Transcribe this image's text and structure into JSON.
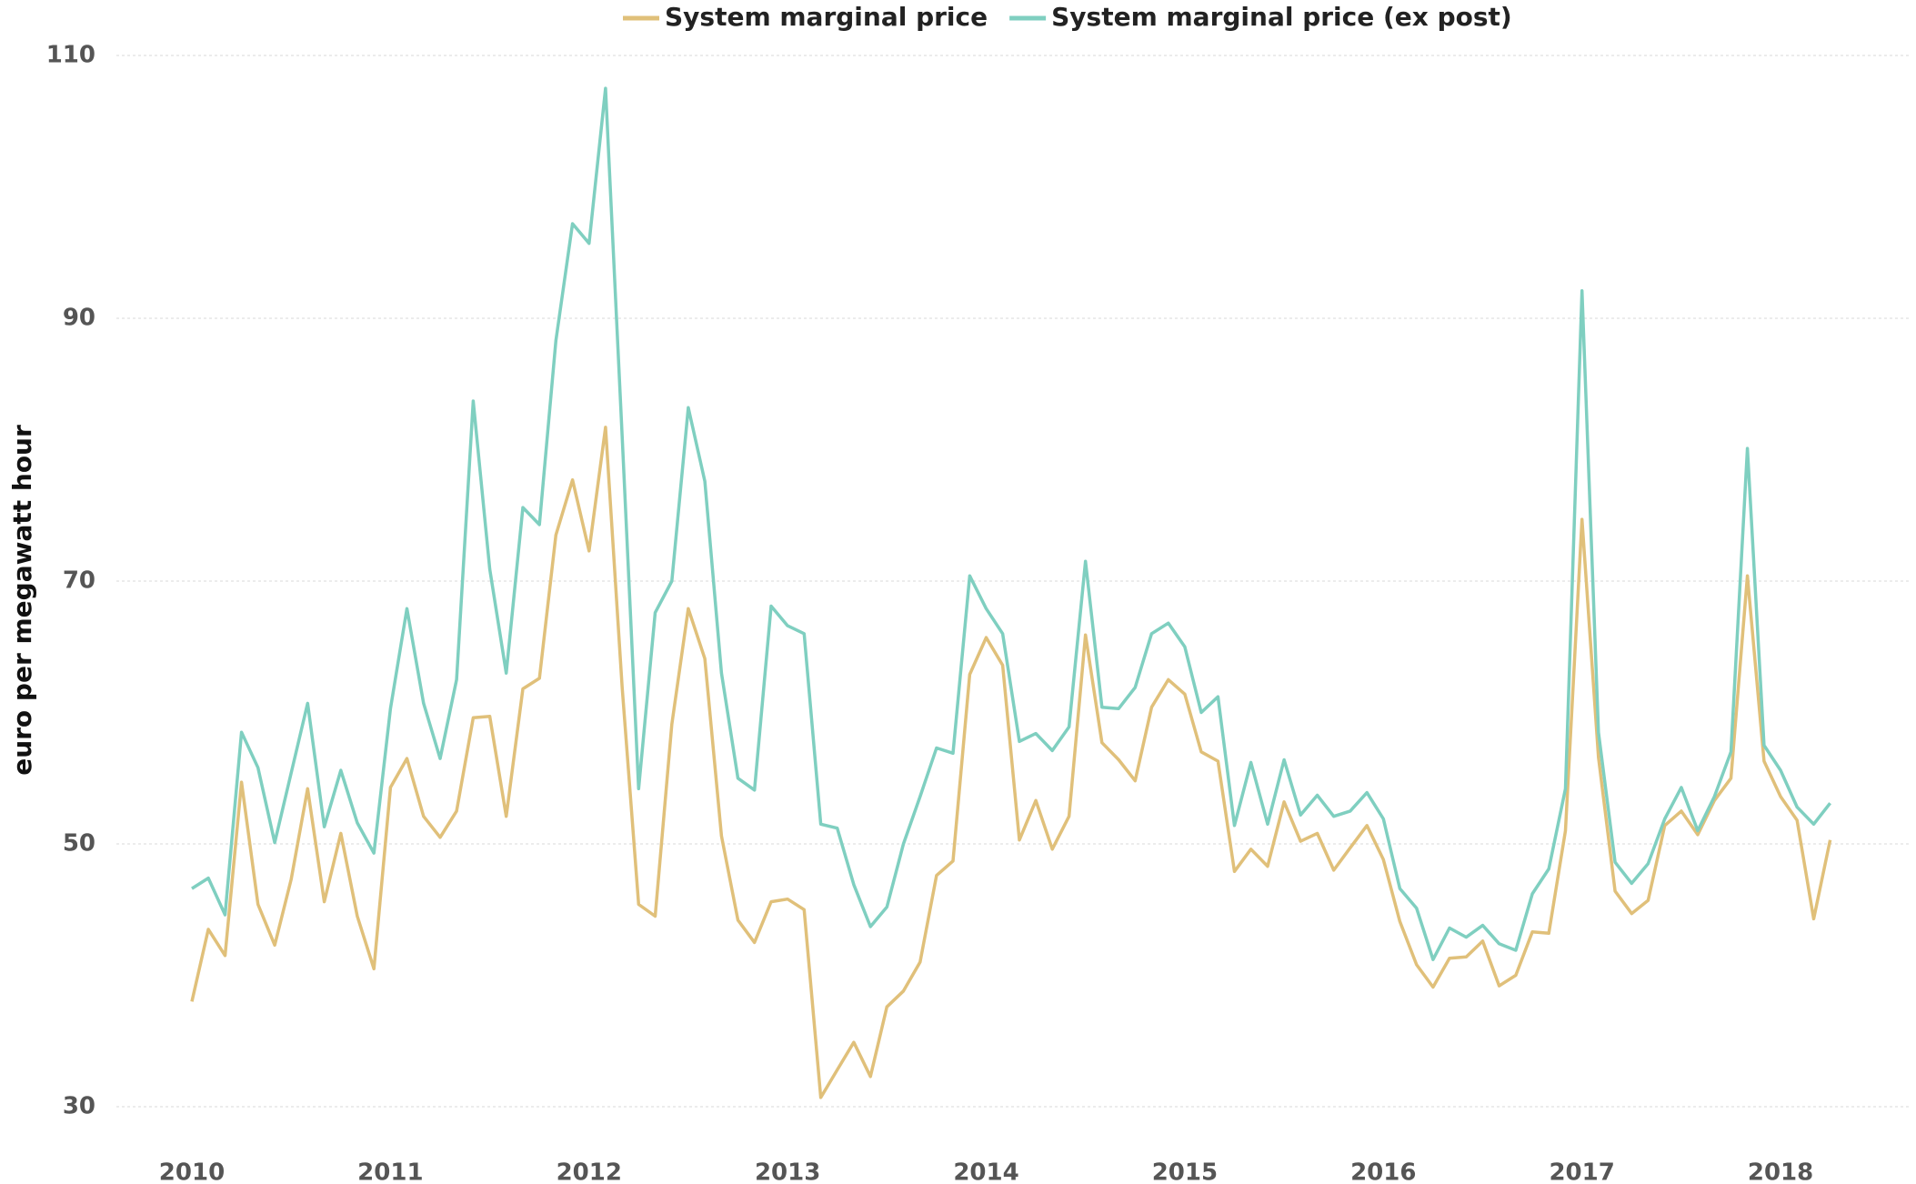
{
  "chart_data": {
    "type": "line",
    "y_label": "euro per megawatt hour",
    "x": [
      2010,
      2010.083,
      2010.167,
      2010.25,
      2010.333,
      2010.417,
      2010.5,
      2010.583,
      2010.667,
      2010.75,
      2010.833,
      2010.917,
      2011,
      2011.083,
      2011.167,
      2011.25,
      2011.333,
      2011.417,
      2011.5,
      2011.583,
      2011.667,
      2011.75,
      2011.833,
      2011.917,
      2012,
      2012.083,
      2012.167,
      2012.25,
      2012.333,
      2012.417,
      2012.5,
      2012.583,
      2012.667,
      2012.75,
      2012.833,
      2012.917,
      2013,
      2013.083,
      2013.167,
      2013.25,
      2013.333,
      2013.417,
      2013.5,
      2013.583,
      2013.667,
      2013.75,
      2013.833,
      2013.917,
      2014,
      2014.083,
      2014.167,
      2014.25,
      2014.333,
      2014.417,
      2014.5,
      2014.583,
      2014.667,
      2014.75,
      2014.833,
      2014.917,
      2015,
      2015.083,
      2015.167,
      2015.25,
      2015.333,
      2015.417,
      2015.5,
      2015.583,
      2015.667,
      2015.75,
      2015.833,
      2015.917,
      2016,
      2016.083,
      2016.167,
      2016.25,
      2016.333,
      2016.417,
      2016.5,
      2016.583,
      2016.667,
      2016.75,
      2016.833,
      2016.917,
      2017,
      2017.083,
      2017.167,
      2017.25,
      2017.333,
      2017.417,
      2017.5,
      2017.583,
      2017.667,
      2017.75,
      2017.833,
      2017.917,
      2018,
      2018.083,
      2018.167,
      2018.25
    ],
    "series": [
      {
        "name": "System marginal price",
        "color": "#e0c07a",
        "values": [
          38,
          43.5,
          41.5,
          54.7,
          45.4,
          42.3,
          47.3,
          54.2,
          45.6,
          50.8,
          44.5,
          40.5,
          54.3,
          56.5,
          52.1,
          50.5,
          52.5,
          59.6,
          59.7,
          52.1,
          61.8,
          62.6,
          73.5,
          77.7,
          72.3,
          81.7,
          61.9,
          45.4,
          44.5,
          59.1,
          67.9,
          64.1,
          50.6,
          44.2,
          42.5,
          45.6,
          45.8,
          45.0,
          30.7,
          32.8,
          34.9,
          32.3,
          37.6,
          38.8,
          41.0,
          47.6,
          48.7,
          62.9,
          65.7,
          63.6,
          50.3,
          53.3,
          49.6,
          52.1,
          65.9,
          57.7,
          56.4,
          54.8,
          60.4,
          62.5,
          61.4,
          57.0,
          56.3,
          47.9,
          49.6,
          48.3,
          53.2,
          50.2,
          50.8,
          48.0,
          49.7,
          51.4,
          48.8,
          44.1,
          40.8,
          39.1,
          41.3,
          41.4,
          42.6,
          39.2,
          40.0,
          43.3,
          43.2,
          51.0,
          74.7,
          56.6,
          46.4,
          44.7,
          45.7,
          51.4,
          52.5,
          50.7,
          53.3,
          55.0,
          70.4,
          56.3,
          53.6,
          51.8,
          44.3,
          50.3
        ]
      },
      {
        "name": "System marginal price (ex post)",
        "color": "#7fcfc0",
        "values": [
          46.6,
          47.4,
          44.6,
          58.5,
          55.8,
          50.1,
          55.4,
          60.7,
          51.3,
          55.6,
          51.6,
          49.3,
          60.3,
          67.9,
          60.7,
          56.5,
          62.5,
          83.7,
          70.9,
          63.0,
          75.6,
          74.3,
          88.3,
          97.2,
          95.7,
          107.5,
          81.0,
          54.2,
          67.6,
          70.0,
          83.2,
          77.6,
          63.0,
          55.0,
          54.1,
          68.1,
          66.6,
          66.0,
          51.5,
          51.2,
          46.9,
          43.7,
          45.2,
          50.0,
          53.6,
          57.3,
          56.9,
          70.4,
          67.9,
          66.0,
          57.8,
          58.4,
          57.1,
          58.9,
          71.5,
          60.4,
          60.3,
          61.9,
          66.0,
          66.8,
          65.0,
          60.0,
          61.2,
          51.4,
          56.2,
          51.5,
          56.4,
          52.2,
          53.7,
          52.1,
          52.5,
          53.9,
          51.9,
          46.6,
          45.1,
          41.2,
          43.6,
          42.9,
          43.8,
          42.4,
          41.9,
          46.2,
          48.1,
          54.2,
          92.1,
          58.5,
          48.6,
          47.0,
          48.5,
          51.9,
          54.3,
          51.0,
          53.6,
          57.0,
          80.1,
          57.5,
          55.6,
          52.8,
          51.5,
          53.1
        ]
      }
    ],
    "xlim": [
      2009.62,
      2018.65
    ],
    "xticks": [
      2010,
      2011,
      2012,
      2013,
      2014,
      2015,
      2016,
      2017,
      2018
    ],
    "ylim": [
      30,
      110
    ],
    "yticks": [
      30,
      50,
      70,
      90,
      110
    ],
    "grid": true,
    "legend": "top"
  }
}
